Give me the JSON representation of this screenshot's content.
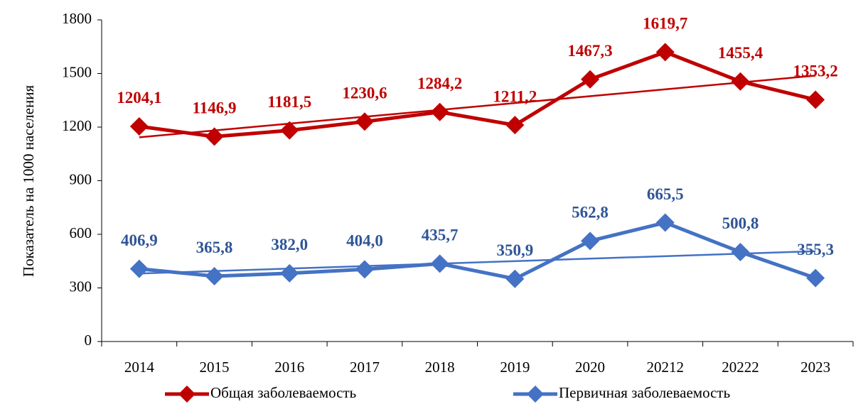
{
  "chart_data": {
    "type": "line",
    "y_label": "Показатель на 1000 населения",
    "categories": [
      "2014",
      "2015",
      "2016",
      "2017",
      "2018",
      "2019",
      "2020",
      "20212",
      "20222",
      "2023"
    ],
    "series": [
      {
        "name": "Общая заболеваемость",
        "color": "#c00000",
        "label_color": "#c00000",
        "trendline": true,
        "values": [
          1204.1,
          1146.9,
          1181.5,
          1230.6,
          1284.2,
          1211.2,
          1467.3,
          1619.7,
          1455.4,
          1353.2
        ],
        "value_labels": [
          "1204,1",
          "1146,9",
          "1181,5",
          "1230,6",
          "1284,2",
          "1211,2",
          "1467,3",
          "1619,7",
          "1455,4",
          "1353,2"
        ]
      },
      {
        "name": "Первичная заболеваемость",
        "color": "#4472c4",
        "label_color": "#2f5597",
        "trendline": true,
        "values": [
          406.9,
          365.8,
          382.0,
          404.0,
          435.7,
          350.9,
          562.8,
          665.5,
          500.8,
          355.3
        ],
        "value_labels": [
          "406,9",
          "365,8",
          "382,0",
          "404,0",
          "435,7",
          "350,9",
          "562,8",
          "665,5",
          "500,8",
          "355,3"
        ]
      }
    ],
    "ylim": [
      0,
      1800
    ],
    "yticks": [
      0,
      300,
      600,
      900,
      1200,
      1500,
      1800
    ],
    "grid": false,
    "legend": "bottom"
  }
}
